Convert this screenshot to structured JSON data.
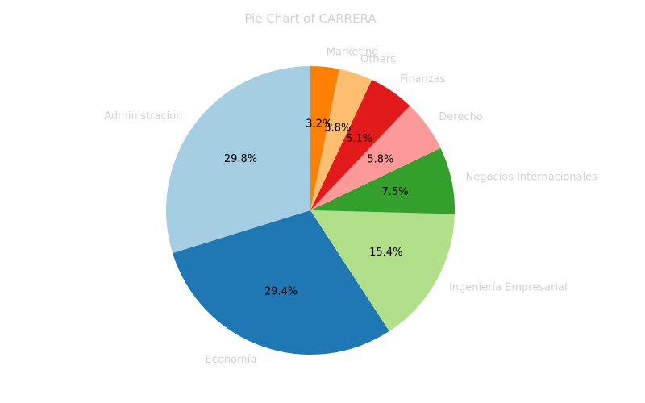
{
  "chart_data": {
    "type": "pie",
    "title": "Pie Chart of CARRERA",
    "start_angle_deg": 90,
    "direction": "counterclockwise",
    "slices": [
      {
        "label": "Administración",
        "percent": 29.8,
        "percent_label": "29.8%",
        "color": "#a6cee3"
      },
      {
        "label": "Economía",
        "percent": 29.4,
        "percent_label": "29.4%",
        "color": "#1f78b4"
      },
      {
        "label": "Ingeniería Empresarial",
        "percent": 15.4,
        "percent_label": "15.4%",
        "color": "#b2df8a"
      },
      {
        "label": "Negocios Internacionales",
        "percent": 7.5,
        "percent_label": "7.5%",
        "color": "#33a02c"
      },
      {
        "label": "Derecho",
        "percent": 5.8,
        "percent_label": "5.8%",
        "color": "#fb9a99"
      },
      {
        "label": "Finanzas",
        "percent": 5.1,
        "percent_label": "5.1%",
        "color": "#e31a1c"
      },
      {
        "label": "Others",
        "percent": 3.8,
        "percent_label": "3.8%",
        "color": "#fdbf6f"
      },
      {
        "label": "Marketing",
        "percent": 3.2,
        "percent_label": "3.2%",
        "color": "#ff7f00"
      }
    ]
  }
}
